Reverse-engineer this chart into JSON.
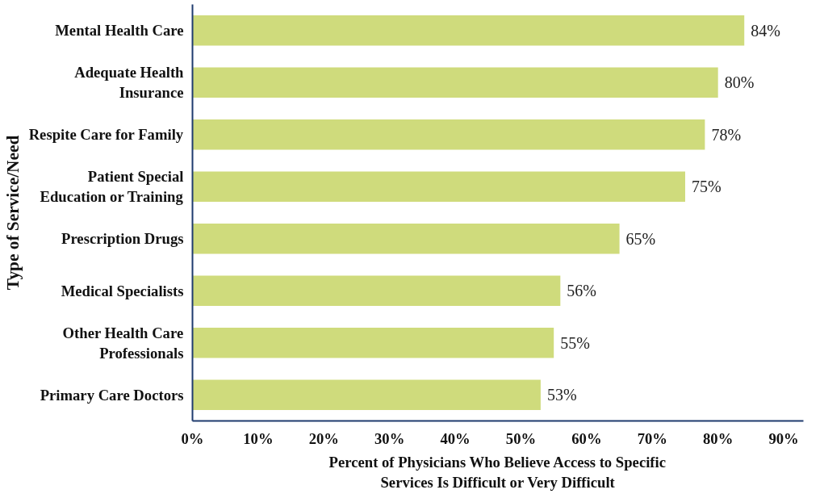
{
  "chart_data": {
    "type": "bar",
    "orientation": "horizontal",
    "ylabel": "Type of Service/Need",
    "xlabel": "Percent of Physicians Who Believe Access to Specific Services Is Difficult or Very Difficult",
    "categories": [
      "Mental Health Care",
      "Adequate Health Insurance",
      "Respite Care for Family",
      "Patient Special Education or Training",
      "Prescription Drugs",
      "Medical Specialists",
      "Other Health Care Professionals",
      "Primary Care Doctors"
    ],
    "values": [
      84,
      80,
      78,
      75,
      65,
      56,
      55,
      53
    ],
    "value_labels": [
      "84%",
      "80%",
      "78%",
      "75%",
      "65%",
      "56%",
      "55%",
      "53%"
    ],
    "color": "#cfdb7c",
    "xlim": [
      0,
      93
    ],
    "xticks": [
      {
        "value": 0,
        "label": "0%"
      },
      {
        "value": 10,
        "label": "10%"
      },
      {
        "value": 20,
        "label": "20%"
      },
      {
        "value": 30,
        "label": "30%"
      },
      {
        "value": 40,
        "label": "40%"
      },
      {
        "value": 50,
        "label": "50%"
      },
      {
        "value": 60,
        "label": "60%"
      },
      {
        "value": 70,
        "label": "70%"
      },
      {
        "value": 80,
        "label": "80%"
      },
      {
        "value": 90,
        "label": "90%"
      }
    ],
    "grid": false
  }
}
